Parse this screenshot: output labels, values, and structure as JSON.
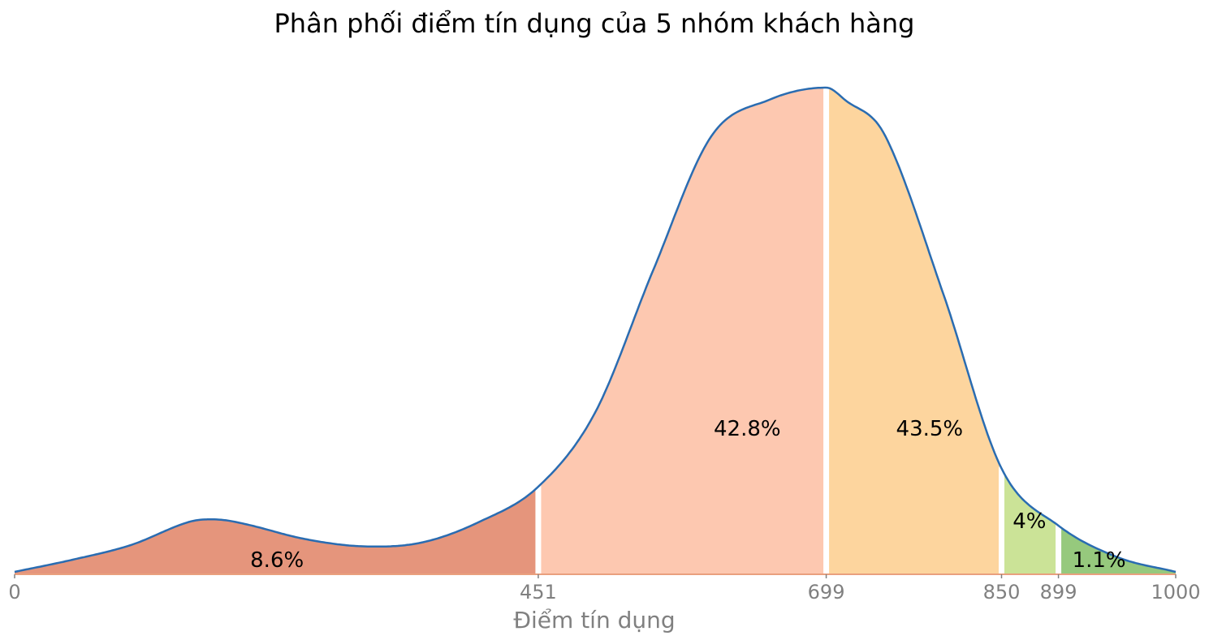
{
  "chart_data": {
    "type": "area",
    "title": "Phân phối điểm tín dụng của 5 nhóm khách hàng",
    "xlabel": "Điểm tín dụng",
    "ylabel": "",
    "xlim": [
      0,
      1000
    ],
    "ylim": [
      0,
      0.0042
    ],
    "grid": false,
    "legend": "none",
    "x_ticks": [
      0,
      451,
      699,
      850,
      899,
      1000
    ],
    "density": {
      "x": [
        0,
        50,
        100,
        150,
        175,
        200,
        250,
        300,
        350,
        400,
        451,
        500,
        550,
        600,
        650,
        699,
        715,
        750,
        800,
        850,
        899,
        950,
        1000
      ],
      "y": [
        2e-05,
        0.00012,
        0.00024,
        0.00043,
        0.00045,
        0.00041,
        0.00029,
        0.00023,
        0.00026,
        0.00043,
        0.00072,
        0.00133,
        0.0025,
        0.0036,
        0.0039,
        0.004,
        0.0039,
        0.0036,
        0.0023,
        0.00087,
        0.0004,
        0.00014,
        2e-05
      ]
    },
    "segments": [
      {
        "from": 0,
        "to": 451,
        "label": "8.6%",
        "color": "#e5957c",
        "label_pos": [
          226,
          0.00012
        ]
      },
      {
        "from": 451,
        "to": 699,
        "label": "42.8%",
        "color": "#fdc8b0",
        "label_pos": [
          631,
          0.0012
        ]
      },
      {
        "from": 699,
        "to": 850,
        "label": "43.5%",
        "color": "#fdd59e",
        "label_pos": [
          788,
          0.0012
        ]
      },
      {
        "from": 850,
        "to": 899,
        "label": "4%",
        "color": "#cbe397",
        "label_pos": [
          874,
          0.00044
        ]
      },
      {
        "from": 899,
        "to": 1000,
        "label": "1.1%",
        "color": "#96c97d",
        "label_pos": [
          934,
          0.00012
        ]
      }
    ],
    "line_color": "#2a6cb1",
    "axis_color": "#e9a07e"
  }
}
